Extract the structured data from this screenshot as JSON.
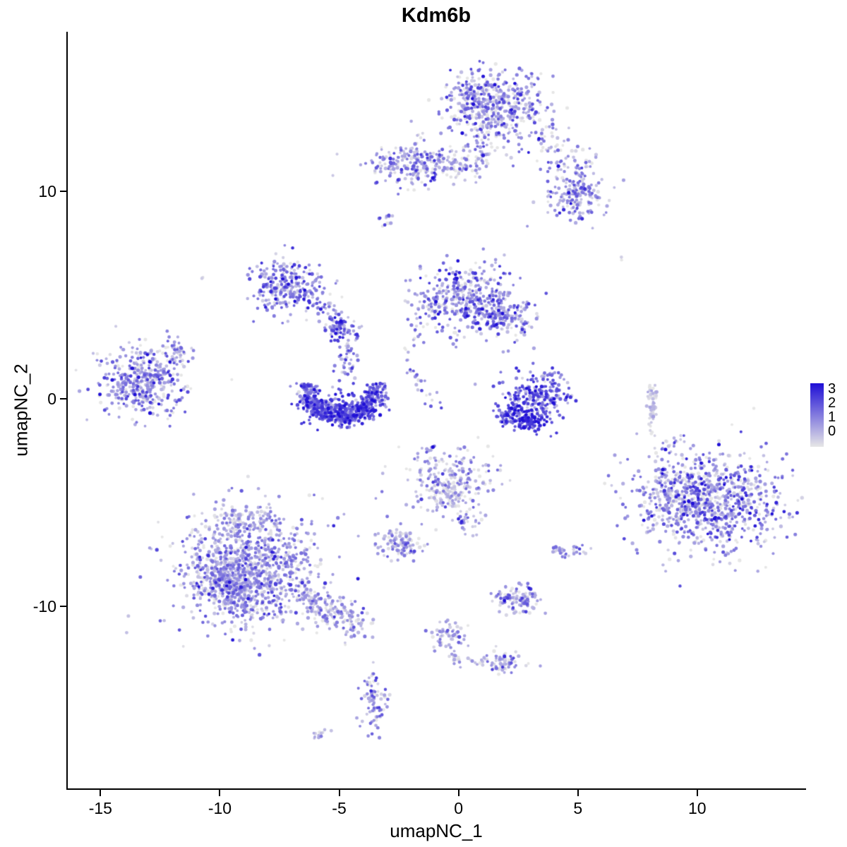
{
  "chart_data": {
    "type": "scatter",
    "title": "Kdm6b",
    "xlabel": "umapNC_1",
    "ylabel": "umapNC_2",
    "xlim": [
      -16.4,
      14.5
    ],
    "ylim": [
      -18.8,
      17.7
    ],
    "xticks": [
      -15,
      -10,
      -5,
      0,
      5,
      10
    ],
    "yticks": [
      10,
      0,
      -10
    ],
    "grid": false,
    "point_radius_px": 2.2,
    "legend": {
      "labels": [
        "3",
        "2",
        "1",
        "0"
      ],
      "values": [
        3,
        2,
        1,
        0
      ],
      "low_color": "#E6E6E6",
      "high_color": "#1F0FD6",
      "position": "right"
    },
    "expression_range": [
      0,
      3
    ],
    "clusters": [
      {
        "name": "top-main",
        "type": "gauss",
        "cx": 1.6,
        "cy": 14.0,
        "sx": 1.05,
        "sy": 0.9,
        "n": 440,
        "expr": [
          0.9,
          0.85
        ]
      },
      {
        "name": "top-main-left-edge",
        "type": "gauss",
        "cx": 0.6,
        "cy": 14.6,
        "sx": 0.5,
        "sy": 0.5,
        "n": 90,
        "expr": [
          1.1,
          0.8
        ]
      },
      {
        "name": "top-right-spur",
        "type": "chain",
        "pts": [
          [
            3.4,
            12.6
          ],
          [
            4.3,
            11.7
          ],
          [
            5.0,
            10.6
          ],
          [
            4.7,
            9.5
          ]
        ],
        "w": 0.45,
        "n": 120,
        "expr": [
          0.9,
          0.8
        ]
      },
      {
        "name": "top-right-blob",
        "type": "gauss",
        "cx": 4.9,
        "cy": 9.7,
        "sx": 0.75,
        "sy": 0.6,
        "n": 140,
        "expr": [
          1.0,
          0.85
        ]
      },
      {
        "name": "top-right-dots",
        "type": "gauss",
        "cx": 5.7,
        "cy": 11.6,
        "sx": 0.2,
        "sy": 0.15,
        "n": 5,
        "expr": [
          0.5,
          0.5
        ]
      },
      {
        "name": "upper-mid-blob",
        "type": "gauss",
        "cx": -1.9,
        "cy": 11.3,
        "sx": 0.95,
        "sy": 0.55,
        "n": 230,
        "expr": [
          0.9,
          0.8
        ]
      },
      {
        "name": "upper-mid-east-tail",
        "type": "gauss",
        "cx": -0.3,
        "cy": 11.4,
        "sx": 0.7,
        "sy": 0.35,
        "n": 55,
        "expr": [
          0.6,
          0.6
        ]
      },
      {
        "name": "upper-bridge-strand",
        "type": "chain",
        "pts": [
          [
            1.0,
            13.0
          ],
          [
            1.0,
            11.8
          ],
          [
            0.8,
            10.7
          ]
        ],
        "w": 0.22,
        "n": 40,
        "expr": [
          0.8,
          0.7
        ]
      },
      {
        "name": "tiny-upper-dot",
        "type": "gauss",
        "cx": -3.0,
        "cy": 8.6,
        "sx": 0.16,
        "sy": 0.2,
        "n": 13,
        "expr": [
          1.1,
          0.8
        ]
      },
      {
        "name": "single-right-upper",
        "type": "gauss",
        "cx": 6.8,
        "cy": 6.9,
        "sx": 0.1,
        "sy": 0.1,
        "n": 2,
        "expr": [
          0.3,
          0.3
        ]
      },
      {
        "name": "single-left-upper",
        "type": "gauss",
        "cx": -10.7,
        "cy": 5.8,
        "sx": 0.08,
        "sy": 0.08,
        "n": 2,
        "expr": [
          0.3,
          0.3
        ]
      },
      {
        "name": "mid-left-cluster",
        "type": "gauss",
        "cx": -7.2,
        "cy": 5.4,
        "sx": 0.75,
        "sy": 0.62,
        "n": 270,
        "expr": [
          1.15,
          0.8
        ]
      },
      {
        "name": "mid-left-arc",
        "type": "chain",
        "pts": [
          [
            -6.3,
            4.9
          ],
          [
            -5.3,
            4.2
          ],
          [
            -4.7,
            3.2
          ],
          [
            -4.55,
            2.0
          ],
          [
            -4.65,
            1.1
          ]
        ],
        "w": 0.3,
        "n": 110,
        "expr": [
          1.1,
          0.8
        ]
      },
      {
        "name": "mid-left-knot",
        "type": "gauss",
        "cx": -5.0,
        "cy": 3.4,
        "sx": 0.3,
        "sy": 0.3,
        "n": 55,
        "expr": [
          1.5,
          0.8
        ]
      },
      {
        "name": "center-cluster",
        "type": "gauss",
        "cx": 0.3,
        "cy": 4.8,
        "sx": 1.0,
        "sy": 0.8,
        "n": 400,
        "expr": [
          1.2,
          0.85
        ]
      },
      {
        "name": "center-east-wing",
        "type": "gauss",
        "cx": 2.0,
        "cy": 4.0,
        "sx": 0.7,
        "sy": 0.5,
        "n": 140,
        "expr": [
          1.1,
          0.8
        ]
      },
      {
        "name": "center-south-trail",
        "type": "chain",
        "pts": [
          [
            -1.6,
            3.3
          ],
          [
            -2.3,
            2.0
          ],
          [
            -1.5,
            0.6
          ],
          [
            -1.2,
            -0.6
          ]
        ],
        "w": 0.22,
        "n": 38,
        "expr": [
          0.9,
          0.8
        ]
      },
      {
        "name": "crescent",
        "type": "arc",
        "cx": -4.9,
        "cy": 0.6,
        "r": 1.5,
        "thick": 0.5,
        "a0": 175,
        "a1": 365,
        "n": 500,
        "expr": [
          1.7,
          0.75
        ]
      },
      {
        "name": "crescent-fill",
        "type": "gauss",
        "cx": -4.9,
        "cy": -0.5,
        "sx": 0.8,
        "sy": 0.35,
        "n": 160,
        "expr": [
          1.9,
          0.7
        ]
      },
      {
        "name": "left-cluster",
        "type": "gauss",
        "cx": -13.2,
        "cy": 0.9,
        "sx": 0.95,
        "sy": 0.8,
        "n": 430,
        "expr": [
          0.95,
          0.8
        ]
      },
      {
        "name": "left-cluster-tip",
        "type": "gauss",
        "cx": -11.7,
        "cy": 2.3,
        "sx": 0.35,
        "sy": 0.25,
        "n": 35,
        "expr": [
          0.8,
          0.7
        ]
      },
      {
        "name": "right-center-cluster",
        "type": "gauss",
        "cx": 3.3,
        "cy": 0.2,
        "sx": 0.65,
        "sy": 0.55,
        "n": 240,
        "expr": [
          1.6,
          0.8
        ]
      },
      {
        "name": "right-center-dark",
        "type": "gauss",
        "cx": 2.9,
        "cy": -1.0,
        "sx": 0.55,
        "sy": 0.3,
        "n": 130,
        "expr": [
          2.3,
          0.55
        ]
      },
      {
        "name": "right-center-west-dots",
        "type": "gauss",
        "cx": 2.1,
        "cy": -0.7,
        "sx": 0.25,
        "sy": 0.25,
        "n": 40,
        "expr": [
          1.9,
          0.7
        ]
      },
      {
        "name": "thin-streak",
        "type": "chain",
        "pts": [
          [
            8.1,
            0.8
          ],
          [
            8.15,
            -1.7
          ]
        ],
        "w": 0.12,
        "n": 55,
        "expr": [
          0.3,
          0.35
        ]
      },
      {
        "name": "big-right-cluster",
        "type": "gauss",
        "cx": 10.5,
        "cy": -5.0,
        "sx": 1.55,
        "sy": 1.25,
        "n": 820,
        "expr": [
          1.1,
          0.9
        ]
      },
      {
        "name": "big-right-west-fringe",
        "type": "gauss",
        "cx": 8.9,
        "cy": -4.6,
        "sx": 0.7,
        "sy": 0.8,
        "n": 140,
        "expr": [
          0.8,
          0.7
        ]
      },
      {
        "name": "big-right-north-dots",
        "type": "chain",
        "pts": [
          [
            8.6,
            -2.3
          ],
          [
            9.3,
            -2.0
          ]
        ],
        "w": 0.18,
        "n": 14,
        "expr": [
          0.6,
          0.6
        ]
      },
      {
        "name": "center-bottom-cluster",
        "type": "gauss",
        "cx": -0.4,
        "cy": -4.1,
        "sx": 0.85,
        "sy": 0.85,
        "n": 280,
        "expr": [
          0.65,
          0.7
        ]
      },
      {
        "name": "center-bottom-tail",
        "type": "chain",
        "pts": [
          [
            0.2,
            -5.6
          ],
          [
            0.5,
            -6.5
          ]
        ],
        "w": 0.2,
        "n": 22,
        "expr": [
          0.8,
          0.7
        ]
      },
      {
        "name": "small-mid-cluster",
        "type": "gauss",
        "cx": -2.4,
        "cy": -7.0,
        "sx": 0.55,
        "sy": 0.4,
        "n": 110,
        "expr": [
          0.9,
          0.75
        ]
      },
      {
        "name": "bottom-left-cluster",
        "type": "gauss",
        "cx": -8.7,
        "cy": -8.1,
        "sx": 1.5,
        "sy": 1.35,
        "n": 980,
        "expr": [
          0.85,
          0.75
        ]
      },
      {
        "name": "bottom-left-core",
        "type": "gauss",
        "cx": -9.4,
        "cy": -9.0,
        "sx": 0.85,
        "sy": 0.7,
        "n": 300,
        "expr": [
          0.95,
          0.8
        ]
      },
      {
        "name": "bottom-left-north-knob",
        "type": "gauss",
        "cx": -9.1,
        "cy": -5.8,
        "sx": 0.55,
        "sy": 0.4,
        "n": 80,
        "expr": [
          0.7,
          0.6
        ]
      },
      {
        "name": "bottom-left-tail",
        "type": "chain",
        "pts": [
          [
            -6.6,
            -9.5
          ],
          [
            -5.7,
            -10.1
          ],
          [
            -4.9,
            -10.5
          ],
          [
            -4.2,
            -10.8
          ]
        ],
        "w": 0.4,
        "n": 190,
        "expr": [
          0.6,
          0.6
        ]
      },
      {
        "name": "small-bottom-cluster",
        "type": "gauss",
        "cx": 2.4,
        "cy": -9.7,
        "sx": 0.5,
        "sy": 0.3,
        "n": 115,
        "expr": [
          0.9,
          0.75
        ]
      },
      {
        "name": "tiny-pair-west",
        "type": "gauss",
        "cx": 4.3,
        "cy": -7.4,
        "sx": 0.22,
        "sy": 0.18,
        "n": 22,
        "expr": [
          0.9,
          0.7
        ]
      },
      {
        "name": "tiny-pair-east",
        "type": "gauss",
        "cx": 5.1,
        "cy": -7.3,
        "sx": 0.16,
        "sy": 0.13,
        "n": 12,
        "expr": [
          0.8,
          0.7
        ]
      },
      {
        "name": "bottom-chain-blob",
        "type": "gauss",
        "cx": -0.4,
        "cy": -11.5,
        "sx": 0.4,
        "sy": 0.35,
        "n": 55,
        "expr": [
          0.75,
          0.65
        ]
      },
      {
        "name": "bottom-chain-dots",
        "type": "chain",
        "pts": [
          [
            -0.3,
            -12.2
          ],
          [
            -0.1,
            -12.8
          ]
        ],
        "w": 0.14,
        "n": 16,
        "expr": [
          0.7,
          0.6
        ]
      },
      {
        "name": "bottom-right-blob",
        "type": "gauss",
        "cx": 1.9,
        "cy": -12.7,
        "sx": 0.45,
        "sy": 0.28,
        "n": 70,
        "expr": [
          0.8,
          0.7
        ]
      },
      {
        "name": "bottom-link-dots",
        "type": "chain",
        "pts": [
          [
            0.4,
            -12.6
          ],
          [
            1.1,
            -12.7
          ]
        ],
        "w": 0.12,
        "n": 10,
        "expr": [
          0.6,
          0.5
        ]
      },
      {
        "name": "bottom-vertical-cluster",
        "type": "gauss",
        "cx": -3.6,
        "cy": -14.6,
        "sx": 0.25,
        "sy": 0.75,
        "n": 85,
        "expr": [
          1.0,
          0.8
        ]
      },
      {
        "name": "bottom-far-dot",
        "type": "gauss",
        "cx": -5.9,
        "cy": -16.2,
        "sx": 0.18,
        "sy": 0.13,
        "n": 13,
        "expr": [
          0.6,
          0.5
        ]
      }
    ]
  }
}
